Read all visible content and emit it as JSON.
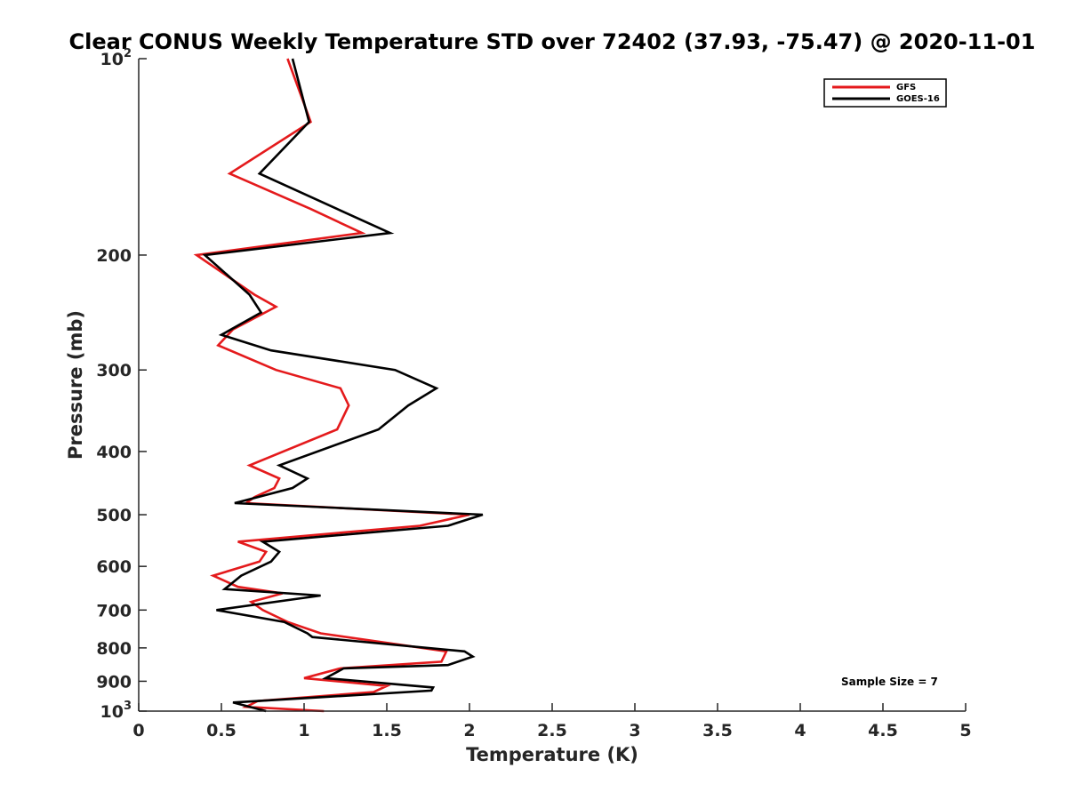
{
  "chart_data": {
    "type": "line",
    "title": "Clear CONUS Weekly Temperature STD over 72402 (37.93, -75.47) @ 2020-11-01",
    "xlabel": "Temperature (K)",
    "ylabel": "Pressure (mb)",
    "xlim": [
      0,
      5
    ],
    "ylim": [
      100,
      1000
    ],
    "y_scale": "log",
    "y_reversed": true,
    "grid": false,
    "legend_position": "top-right",
    "x_ticks": [
      "0",
      "0.5",
      "1",
      "1.5",
      "2",
      "2.5",
      "3",
      "3.5",
      "4",
      "4.5",
      "5"
    ],
    "y_ticks": [
      {
        "value": 100,
        "base": "10",
        "exp": "2"
      },
      {
        "value": 200,
        "label": "200"
      },
      {
        "value": 300,
        "label": "300"
      },
      {
        "value": 400,
        "label": "400"
      },
      {
        "value": 500,
        "label": "500"
      },
      {
        "value": 600,
        "label": "600"
      },
      {
        "value": 700,
        "label": "700"
      },
      {
        "value": 800,
        "label": "800"
      },
      {
        "value": 900,
        "label": "900"
      },
      {
        "value": 1000,
        "base": "10",
        "exp": "3"
      }
    ],
    "annotation": "Sample Size = 7",
    "series": [
      {
        "name": "GFS",
        "color": "#e41a1c",
        "points": [
          [
            0.9,
            100
          ],
          [
            1.04,
            125
          ],
          [
            0.55,
            150
          ],
          [
            1.04,
            170
          ],
          [
            1.35,
            185
          ],
          [
            0.35,
            200
          ],
          [
            0.7,
            230
          ],
          [
            0.83,
            240
          ],
          [
            0.57,
            260
          ],
          [
            0.48,
            275
          ],
          [
            0.83,
            300
          ],
          [
            1.22,
            320
          ],
          [
            1.27,
            340
          ],
          [
            1.2,
            370
          ],
          [
            0.67,
            420
          ],
          [
            0.85,
            440
          ],
          [
            0.82,
            455
          ],
          [
            0.7,
            470
          ],
          [
            0.65,
            480
          ],
          [
            2.0,
            500
          ],
          [
            1.7,
            520
          ],
          [
            0.6,
            550
          ],
          [
            0.77,
            570
          ],
          [
            0.73,
            590
          ],
          [
            0.45,
            620
          ],
          [
            0.6,
            645
          ],
          [
            0.87,
            660
          ],
          [
            0.68,
            680
          ],
          [
            0.75,
            700
          ],
          [
            0.9,
            730
          ],
          [
            1.1,
            760
          ],
          [
            1.86,
            810
          ],
          [
            1.83,
            840
          ],
          [
            1.22,
            860
          ],
          [
            1.0,
            890
          ],
          [
            1.5,
            915
          ],
          [
            1.42,
            935
          ],
          [
            0.72,
            965
          ],
          [
            0.65,
            985
          ],
          [
            1.12,
            1000
          ]
        ]
      },
      {
        "name": "GOES-16",
        "color": "#000000",
        "points": [
          [
            0.93,
            100
          ],
          [
            1.03,
            125
          ],
          [
            0.73,
            150
          ],
          [
            1.2,
            170
          ],
          [
            1.52,
            185
          ],
          [
            0.4,
            200
          ],
          [
            0.67,
            230
          ],
          [
            0.74,
            245
          ],
          [
            0.5,
            265
          ],
          [
            0.8,
            280
          ],
          [
            1.55,
            300
          ],
          [
            1.8,
            320
          ],
          [
            1.63,
            340
          ],
          [
            1.45,
            370
          ],
          [
            0.85,
            420
          ],
          [
            1.02,
            440
          ],
          [
            0.93,
            455
          ],
          [
            0.58,
            480
          ],
          [
            2.08,
            500
          ],
          [
            1.87,
            520
          ],
          [
            0.75,
            550
          ],
          [
            0.85,
            570
          ],
          [
            0.8,
            590
          ],
          [
            0.62,
            620
          ],
          [
            0.52,
            650
          ],
          [
            1.1,
            665
          ],
          [
            0.47,
            700
          ],
          [
            0.88,
            730
          ],
          [
            1.02,
            760
          ],
          [
            1.05,
            770
          ],
          [
            1.97,
            810
          ],
          [
            2.02,
            825
          ],
          [
            1.87,
            850
          ],
          [
            1.24,
            860
          ],
          [
            1.13,
            890
          ],
          [
            1.78,
            920
          ],
          [
            1.77,
            930
          ],
          [
            0.57,
            970
          ],
          [
            0.77,
            1000
          ]
        ]
      }
    ]
  }
}
